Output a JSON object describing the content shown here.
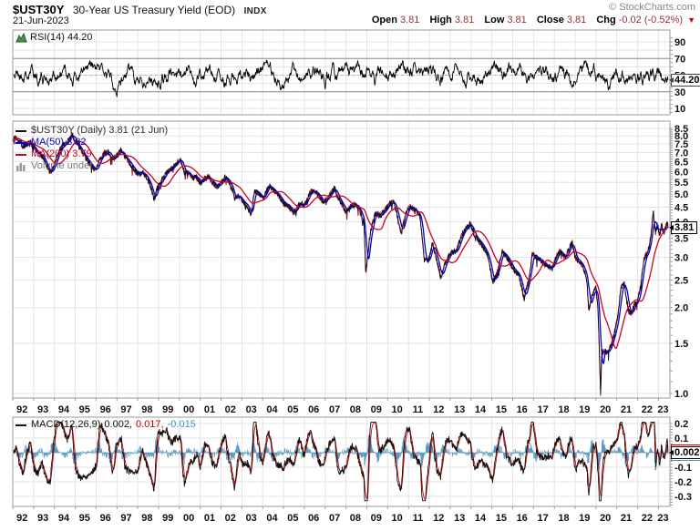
{
  "header": {
    "symbol": "$UST30Y",
    "description": "30-Year US Treasury Yield (EOD)",
    "exchange": "INDX",
    "date": "21-Jun-2023",
    "copyright": "© StockCharts.com",
    "quote": {
      "open_label": "Open",
      "open_value": "3.81",
      "high_label": "High",
      "high_value": "3.81",
      "low_label": "Low",
      "low_value": "3.81",
      "close_label": "Close",
      "close_value": "3.81",
      "chg_label": "Chg",
      "chg_value": "-0.02 (-0.52%)",
      "chg_direction": "down"
    }
  },
  "rsi_panel": {
    "legend": "RSI(14) 44.20",
    "last_value_label": "44.20"
  },
  "main_panel": {
    "legend_price": "$UST30Y (Daily) 3.81 (21 Jun)",
    "legend_ma50": "MA(50) 3.82",
    "legend_ma200": "MA(200) 3.79",
    "legend_volume": "Volume undef",
    "last_price_label": "3.81"
  },
  "macd_panel": {
    "legend_name": "MACD(12,26,9)",
    "macd_value": "0.002,",
    "signal_value": "0.017,",
    "hist_value": "-0.015",
    "last_value_label": "0.002"
  },
  "x_axis": {
    "years": [
      "92",
      "93",
      "94",
      "95",
      "96",
      "97",
      "98",
      "99",
      "00",
      "01",
      "02",
      "03",
      "04",
      "05",
      "06",
      "07",
      "08",
      "09",
      "10",
      "11",
      "12",
      "13",
      "14",
      "15",
      "16",
      "17",
      "18",
      "19",
      "20",
      "21",
      "22",
      "23"
    ]
  },
  "colors": {
    "price": "#111111",
    "price_alt": "#aa1122",
    "ma50": "#0000cc",
    "ma200": "#cc0022",
    "macd_line": "#111111",
    "signal_line": "#cc0000",
    "histogram": "#5b9bc0",
    "rsi_line": "#000000",
    "grid": "#e3e3e3",
    "panel_border": "#999999",
    "band_line": "#8a8a8a",
    "mid_dash": "#b5b5b5",
    "quote_value": "#993333",
    "chg_red": "#cc0000",
    "legend_gray": "#777777"
  },
  "chart_data": [
    {
      "type": "line",
      "panel": "rsi",
      "name": "RSI(14)",
      "last_value": 44.2,
      "ylim": [
        0,
        100
      ],
      "y_ticks": [
        90,
        70,
        50,
        30,
        10
      ],
      "levels": {
        "overbought": 70,
        "mid": 50,
        "oversold": 30
      },
      "x_range": [
        1992,
        2023.5
      ]
    },
    {
      "type": "line",
      "panel": "price",
      "name": "$UST30Y",
      "frequency": "daily",
      "log_scale": true,
      "x_range": [
        1992,
        2023.5
      ],
      "ylim": [
        1.0,
        8.7
      ],
      "y_ticks": [
        8.5,
        8.0,
        7.5,
        7.0,
        6.5,
        6.0,
        5.5,
        5.0,
        4.5,
        4.0,
        3.5,
        3.0,
        2.5,
        2.0,
        1.5,
        1.0
      ],
      "last_close": 3.81,
      "series": [
        {
          "name": "$UST30Y",
          "anchors": [
            [
              1992.05,
              7.8
            ],
            [
              1992.15,
              7.9
            ],
            [
              1992.3,
              7.7
            ],
            [
              1992.5,
              7.35
            ],
            [
              1992.7,
              7.45
            ],
            [
              1992.85,
              7.6
            ],
            [
              1993.0,
              7.3
            ],
            [
              1993.2,
              6.95
            ],
            [
              1993.4,
              6.85
            ],
            [
              1993.6,
              6.35
            ],
            [
              1993.8,
              5.9
            ],
            [
              1994.0,
              6.3
            ],
            [
              1994.2,
              7.0
            ],
            [
              1994.4,
              7.4
            ],
            [
              1994.6,
              7.55
            ],
            [
              1994.85,
              8.1
            ],
            [
              1995.0,
              7.7
            ],
            [
              1995.2,
              7.3
            ],
            [
              1995.4,
              6.9
            ],
            [
              1995.6,
              6.55
            ],
            [
              1995.8,
              6.25
            ],
            [
              1996.0,
              6.05
            ],
            [
              1996.2,
              6.65
            ],
            [
              1996.4,
              6.95
            ],
            [
              1996.6,
              7.05
            ],
            [
              1996.8,
              6.6
            ],
            [
              1997.0,
              6.85
            ],
            [
              1997.2,
              7.1
            ],
            [
              1997.4,
              6.75
            ],
            [
              1997.6,
              6.45
            ],
            [
              1997.8,
              6.15
            ],
            [
              1998.0,
              5.85
            ],
            [
              1998.25,
              5.95
            ],
            [
              1998.45,
              5.7
            ],
            [
              1998.65,
              5.25
            ],
            [
              1998.78,
              4.75
            ],
            [
              1998.9,
              5.15
            ],
            [
              1999.0,
              5.35
            ],
            [
              1999.2,
              5.65
            ],
            [
              1999.4,
              6.0
            ],
            [
              1999.6,
              6.1
            ],
            [
              1999.8,
              6.35
            ],
            [
              2000.05,
              6.65
            ],
            [
              2000.25,
              5.95
            ],
            [
              2000.45,
              5.9
            ],
            [
              2000.65,
              5.7
            ],
            [
              2000.85,
              5.75
            ],
            [
              2001.0,
              5.45
            ],
            [
              2001.2,
              5.65
            ],
            [
              2001.4,
              5.75
            ],
            [
              2001.6,
              5.5
            ],
            [
              2001.8,
              5.3
            ],
            [
              2002.0,
              5.45
            ],
            [
              2002.2,
              5.75
            ],
            [
              2002.45,
              5.45
            ],
            [
              2002.65,
              4.8
            ],
            [
              2002.85,
              4.95
            ],
            [
              2003.0,
              4.75
            ],
            [
              2003.25,
              4.55
            ],
            [
              2003.45,
              4.2
            ],
            [
              2003.6,
              5.15
            ],
            [
              2003.8,
              5.05
            ],
            [
              2004.0,
              4.8
            ],
            [
              2004.3,
              5.35
            ],
            [
              2004.55,
              5.15
            ],
            [
              2004.8,
              4.9
            ],
            [
              2005.0,
              4.65
            ],
            [
              2005.3,
              4.5
            ],
            [
              2005.5,
              4.3
            ],
            [
              2005.8,
              4.65
            ],
            [
              2006.0,
              4.55
            ],
            [
              2006.3,
              5.1
            ],
            [
              2006.55,
              5.1
            ],
            [
              2006.9,
              4.7
            ],
            [
              2007.1,
              4.8
            ],
            [
              2007.45,
              5.25
            ],
            [
              2007.6,
              4.9
            ],
            [
              2007.85,
              4.55
            ],
            [
              2008.0,
              4.35
            ],
            [
              2008.25,
              4.55
            ],
            [
              2008.5,
              4.6
            ],
            [
              2008.7,
              4.3
            ],
            [
              2008.85,
              4.0
            ],
            [
              2008.95,
              2.6
            ],
            [
              2009.05,
              3.1
            ],
            [
              2009.15,
              3.6
            ],
            [
              2009.4,
              4.3
            ],
            [
              2009.6,
              4.2
            ],
            [
              2009.85,
              4.35
            ],
            [
              2010.05,
              4.6
            ],
            [
              2010.3,
              4.7
            ],
            [
              2010.65,
              3.65
            ],
            [
              2010.9,
              4.3
            ],
            [
              2011.05,
              4.55
            ],
            [
              2011.3,
              4.4
            ],
            [
              2011.55,
              4.2
            ],
            [
              2011.75,
              2.95
            ],
            [
              2011.95,
              2.9
            ],
            [
              2012.15,
              3.35
            ],
            [
              2012.55,
              2.55
            ],
            [
              2012.8,
              2.9
            ],
            [
              2013.0,
              3.1
            ],
            [
              2013.3,
              3.15
            ],
            [
              2013.6,
              3.65
            ],
            [
              2013.95,
              3.95
            ],
            [
              2014.2,
              3.55
            ],
            [
              2014.5,
              3.35
            ],
            [
              2014.8,
              3.05
            ],
            [
              2015.05,
              2.45
            ],
            [
              2015.3,
              2.7
            ],
            [
              2015.5,
              3.15
            ],
            [
              2015.8,
              2.95
            ],
            [
              2016.0,
              2.75
            ],
            [
              2016.3,
              2.6
            ],
            [
              2016.55,
              2.15
            ],
            [
              2016.8,
              2.55
            ],
            [
              2016.95,
              3.1
            ],
            [
              2017.15,
              3.0
            ],
            [
              2017.4,
              2.9
            ],
            [
              2017.65,
              2.8
            ],
            [
              2017.9,
              2.75
            ],
            [
              2018.05,
              2.95
            ],
            [
              2018.25,
              3.15
            ],
            [
              2018.55,
              3.0
            ],
            [
              2018.85,
              3.4
            ],
            [
              2019.0,
              3.0
            ],
            [
              2019.3,
              2.85
            ],
            [
              2019.55,
              2.55
            ],
            [
              2019.65,
              1.97
            ],
            [
              2019.85,
              2.25
            ],
            [
              2020.0,
              2.35
            ],
            [
              2020.1,
              1.95
            ],
            [
              2020.18,
              1.25
            ],
            [
              2020.22,
              0.99
            ],
            [
              2020.28,
              1.4
            ],
            [
              2020.45,
              1.4
            ],
            [
              2020.6,
              1.4
            ],
            [
              2020.75,
              1.5
            ],
            [
              2020.9,
              1.65
            ],
            [
              2021.05,
              1.85
            ],
            [
              2021.2,
              2.35
            ],
            [
              2021.35,
              2.45
            ],
            [
              2021.55,
              1.95
            ],
            [
              2021.7,
              1.9
            ],
            [
              2021.85,
              2.05
            ],
            [
              2022.0,
              2.1
            ],
            [
              2022.15,
              2.4
            ],
            [
              2022.3,
              2.95
            ],
            [
              2022.45,
              3.1
            ],
            [
              2022.55,
              3.25
            ],
            [
              2022.65,
              3.65
            ],
            [
              2022.75,
              4.35
            ],
            [
              2022.85,
              3.65
            ],
            [
              2022.95,
              3.9
            ],
            [
              2023.05,
              3.6
            ],
            [
              2023.15,
              3.9
            ],
            [
              2023.25,
              3.65
            ],
            [
              2023.35,
              3.85
            ],
            [
              2023.42,
              3.95
            ],
            [
              2023.47,
              3.81
            ]
          ]
        },
        {
          "name": "MA(50)",
          "type": "moving_average",
          "window": 50,
          "last": 3.82
        },
        {
          "name": "MA(200)",
          "type": "moving_average",
          "window": 200,
          "last": 3.79
        }
      ]
    },
    {
      "type": "line",
      "panel": "macd",
      "name": "MACD(12,26,9)",
      "x_range": [
        1992,
        2023.5
      ],
      "ylim": [
        -0.37,
        0.24
      ],
      "y_ticks": [
        0.2,
        0.1,
        -0.1,
        -0.2,
        -0.3
      ],
      "last_values": {
        "macd": 0.002,
        "signal": 0.017,
        "histogram": -0.015
      }
    }
  ]
}
